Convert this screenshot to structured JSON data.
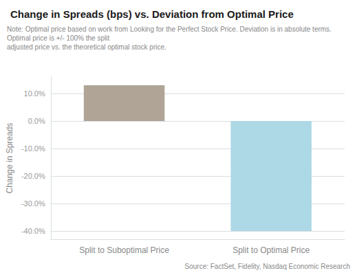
{
  "chart_data": {
    "type": "bar",
    "title": "Change in Spreads (bps) vs. Deviation from Optimal Price",
    "note": "Note: Optimal price based on work from Looking for the Perfect Stock Price. Deviation is in absolute terms. Optimal price is +/- 100% the split\nadjusted price vs. the theoretical optimal stock price.",
    "source": "Source: FactSet, Fidelity, Nasdaq Economic Research",
    "categories": [
      "Split to Suboptimal Price",
      "Split to Optimal Price"
    ],
    "values": [
      13.0,
      -40.0
    ],
    "colors": [
      "#b0a496",
      "#add8e6"
    ],
    "ylabel": "Change in Spreads",
    "ylim": [
      -43,
      16
    ],
    "yticks": [
      {
        "value": 10.0,
        "label": "10.0%"
      },
      {
        "value": 0.0,
        "label": "0.0%"
      },
      {
        "value": -10.0,
        "label": "-10.0%"
      },
      {
        "value": -20.0,
        "label": "-20.0%"
      },
      {
        "value": -30.0,
        "label": "-30.0%"
      },
      {
        "value": -40.0,
        "label": "-40.0%"
      }
    ],
    "grid": true
  }
}
